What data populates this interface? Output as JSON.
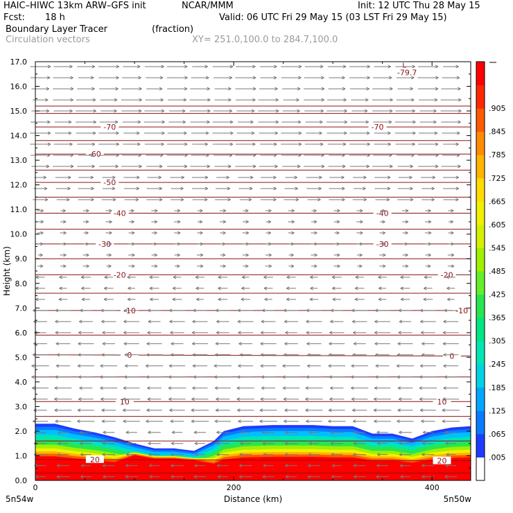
{
  "header": {
    "model": "HAIC–HIWC 13km ARW–GFS init",
    "org": "NCAR/MMM",
    "init": "Init: 12 UTC Thu 28 May 15",
    "fcst_label": "Fcst:",
    "fcst_value": "18 h",
    "valid": "Valid: 06 UTC Fri 29 May 15 (03 LST Fri 29 May 15)",
    "field": "Boundary Layer Tracer",
    "units": "(fraction)",
    "vectors": "Circulation vectors",
    "xy": "XY= 251.0,100.0 to 284.7,100.0"
  },
  "chart_data": {
    "type": "heatmap",
    "ylabel": "Height (km)",
    "xlabel": "Distance (km)",
    "yticks": [
      "0.0",
      "1.0",
      "2.0",
      "3.0",
      "4.0",
      "5.0",
      "6.0",
      "7.0",
      "8.0",
      "9.0",
      "10.0",
      "11.0",
      "12.0",
      "13.0",
      "14.0",
      "15.0",
      "16.0",
      "17.0"
    ],
    "xticks": [
      "0",
      "200",
      "400"
    ],
    "xlim": [
      0,
      439
    ],
    "ylim": [
      0,
      17
    ],
    "endpoints": {
      "left": "5n54w",
      "right": "5n50w"
    },
    "colorbar": {
      "labels": [
        ".005",
        ".065",
        ".125",
        ".185",
        ".245",
        ".305",
        ".365",
        ".425",
        ".485",
        ".545",
        ".605",
        ".665",
        ".725",
        ".785",
        ".845",
        ".905"
      ],
      "colors": [
        "#ffffff",
        "#1e3cff",
        "#0a7bff",
        "#00a6ff",
        "#00d2e6",
        "#00e6b4",
        "#00e682",
        "#28e650",
        "#64f028",
        "#a0f000",
        "#d2f000",
        "#f0f000",
        "#ffdc00",
        "#ffb400",
        "#ff8c00",
        "#ff5a00",
        "#ff2800",
        "#ff0000"
      ]
    },
    "tracer_top_km": [
      [
        0,
        2.3
      ],
      [
        20,
        2.3
      ],
      [
        40,
        2.1
      ],
      [
        60,
        1.95
      ],
      [
        80,
        1.75
      ],
      [
        100,
        1.5
      ],
      [
        120,
        1.3
      ],
      [
        140,
        1.3
      ],
      [
        160,
        1.2
      ],
      [
        180,
        1.6
      ],
      [
        190,
        2.0
      ],
      [
        210,
        2.2
      ],
      [
        240,
        2.25
      ],
      [
        280,
        2.25
      ],
      [
        300,
        2.2
      ],
      [
        320,
        2.2
      ],
      [
        340,
        1.9
      ],
      [
        360,
        1.9
      ],
      [
        380,
        1.7
      ],
      [
        400,
        2.0
      ],
      [
        420,
        2.15
      ],
      [
        439,
        2.2
      ]
    ],
    "temperature_contours": [
      {
        "label": "20",
        "heights": [
          0.85,
          0.8
        ],
        "label_positions": [
          [
            60,
            0.85
          ],
          [
            410,
            0.8
          ]
        ]
      },
      {
        "label": "10",
        "heights": [
          3.2,
          3.2
        ],
        "label_positions": [
          [
            90,
            3.2
          ],
          [
            410,
            3.2
          ]
        ]
      },
      {
        "label": "0",
        "heights": [
          5.1,
          5.05
        ],
        "label_positions": [
          [
            95,
            5.1
          ],
          [
            420,
            5.05
          ]
        ]
      },
      {
        "label": "-10",
        "heights": [
          6.9,
          6.9
        ],
        "label_positions": [
          [
            95,
            6.9
          ],
          [
            430,
            6.9
          ]
        ]
      },
      {
        "label": "-20",
        "heights": [
          8.35,
          8.35
        ],
        "label_positions": [
          [
            85,
            8.35
          ],
          [
            415,
            8.35
          ]
        ]
      },
      {
        "label": "-30",
        "heights": [
          9.6,
          9.6
        ],
        "label_positions": [
          [
            70,
            9.6
          ],
          [
            350,
            9.6
          ]
        ]
      },
      {
        "label": "-40",
        "heights": [
          10.85,
          10.85
        ],
        "label_positions": [
          [
            85,
            10.85
          ],
          [
            350,
            10.85
          ]
        ]
      },
      {
        "label": "-50",
        "heights": [
          12.1,
          12.1
        ],
        "label_positions": [
          [
            75,
            12.1
          ]
        ]
      },
      {
        "label": "-60",
        "heights": [
          13.25,
          13.25
        ],
        "label_positions": [
          [
            60,
            13.25
          ]
        ]
      },
      {
        "label": "-70",
        "heights": [
          14.35,
          14.35
        ],
        "label_positions": [
          [
            75,
            14.35
          ],
          [
            345,
            14.35
          ]
        ]
      }
    ],
    "extra_isotherm_heights": [
      0.3,
      1.6,
      2.6,
      4.2,
      5.9,
      7.6,
      9.0,
      10.2,
      11.5,
      12.6,
      13.8,
      14.9,
      15.2
    ],
    "minimum": {
      "marker": "L",
      "value": "-79.7",
      "x": 365,
      "y": 16.7
    },
    "wind_vectors": [
      {
        "z_max": 2.3,
        "dir": "left",
        "len": 16
      },
      {
        "z_max": 5.0,
        "dir": "left",
        "len": 22
      },
      {
        "z_max": 7.0,
        "dir": "left",
        "len": 20
      },
      {
        "z_max": 8.5,
        "dir": "left",
        "len": 12
      },
      {
        "z_max": 11.0,
        "dir": "right",
        "len": 8
      },
      {
        "z_max": 12.5,
        "dir": "right",
        "len": 20
      },
      {
        "z_max": 17.0,
        "dir": "right",
        "len": 26
      }
    ]
  }
}
